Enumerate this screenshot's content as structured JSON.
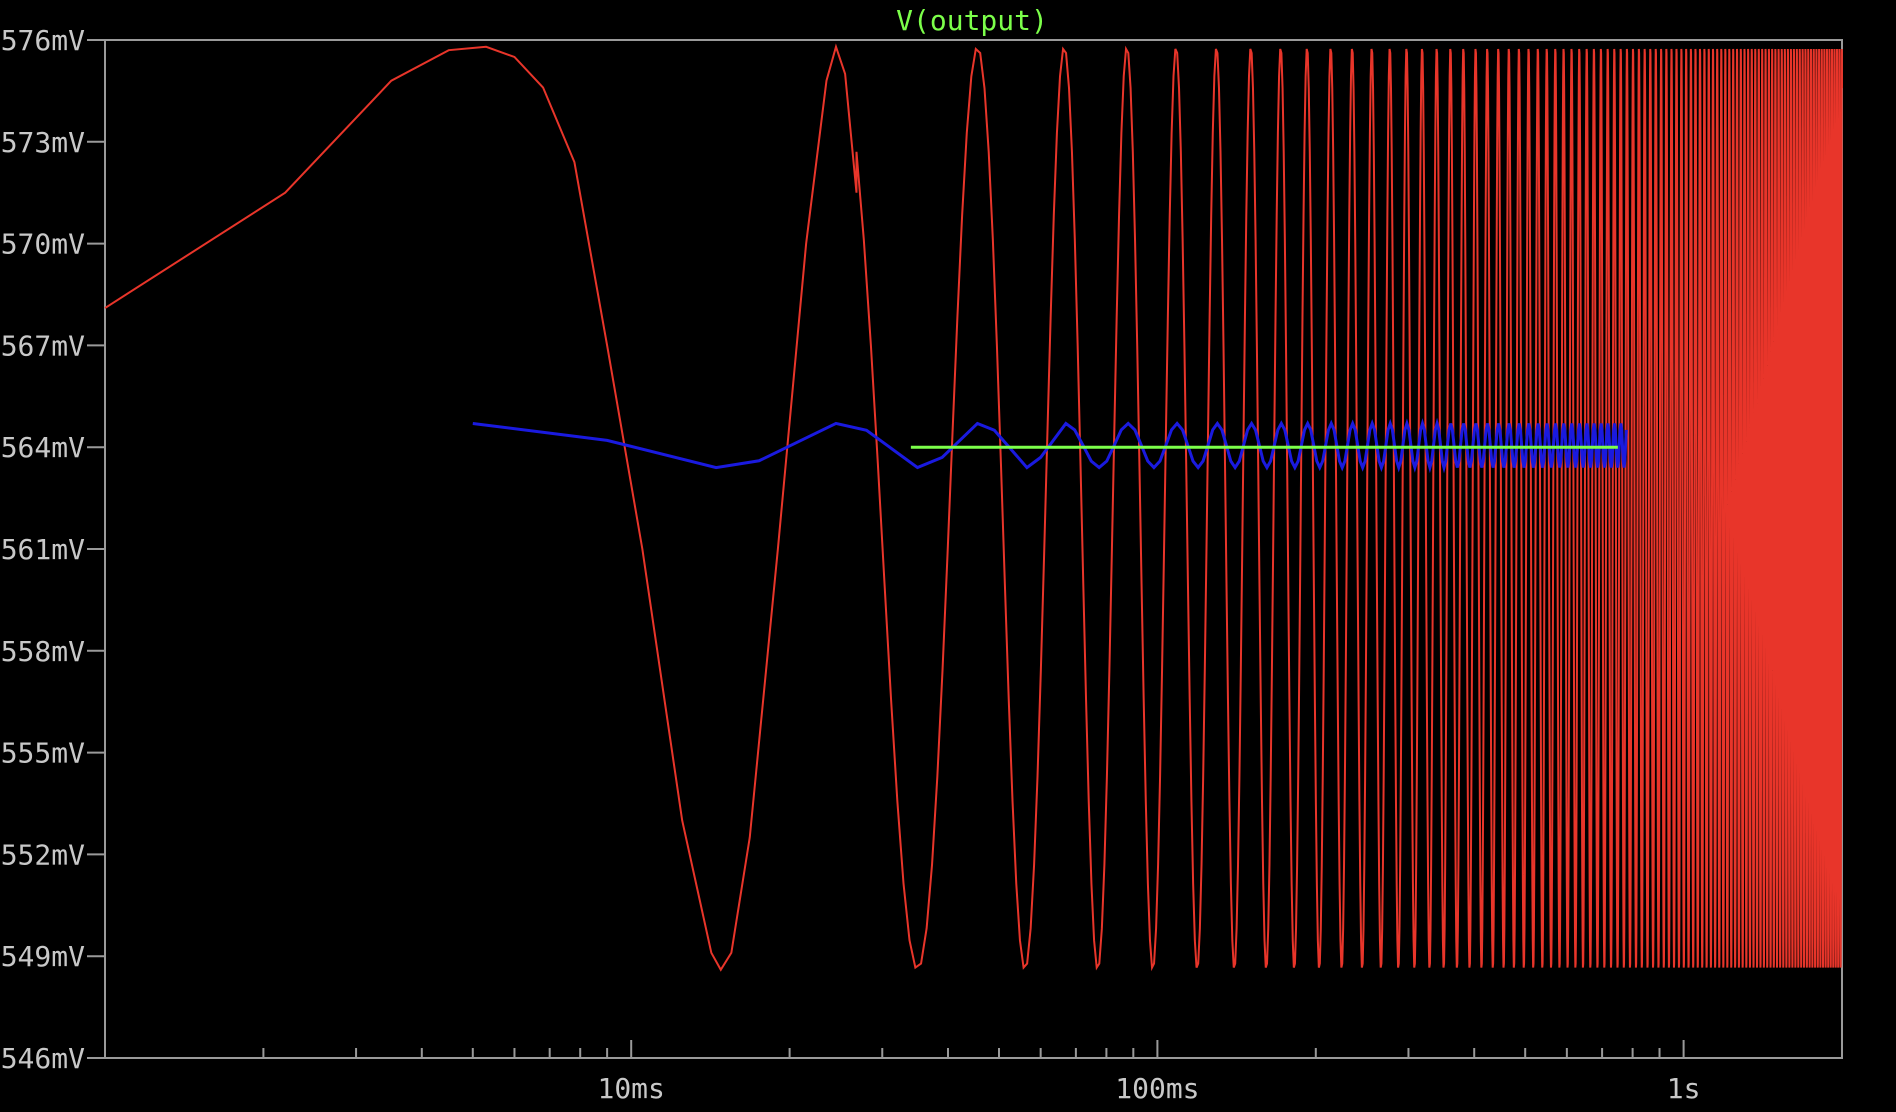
{
  "chart_data": {
    "type": "line",
    "title": "V(output)",
    "title_color": "#7cff4a",
    "background": "#000000",
    "frame_color": "#9a9a9a",
    "label_color": "#c8c8c8",
    "x_scale": "log",
    "xlim": [
      0.001,
      2.0
    ],
    "ylim": [
      546,
      576
    ],
    "x_unit": "s",
    "y_unit": "mV",
    "grid": false,
    "x_major_ticks": [
      {
        "value": 0.01,
        "label": "10ms"
      },
      {
        "value": 0.1,
        "label": "100ms"
      },
      {
        "value": 1,
        "label": "1s"
      }
    ],
    "x_minor_ticks": [
      0.002,
      0.003,
      0.004,
      0.005,
      0.006,
      0.007,
      0.008,
      0.009,
      0.02,
      0.03,
      0.04,
      0.05,
      0.06,
      0.07,
      0.08,
      0.09,
      0.2,
      0.3,
      0.4,
      0.5,
      0.6,
      0.7,
      0.8,
      0.9,
      2.0
    ],
    "y_ticks": [
      {
        "value": 576,
        "label": "576mV"
      },
      {
        "value": 573,
        "label": "573mV"
      },
      {
        "value": 570,
        "label": "570mV"
      },
      {
        "value": 567,
        "label": "567mV"
      },
      {
        "value": 564,
        "label": "564mV"
      },
      {
        "value": 561,
        "label": "561mV"
      },
      {
        "value": 558,
        "label": "558mV"
      },
      {
        "value": 555,
        "label": "555mV"
      },
      {
        "value": 552,
        "label": "552mV"
      },
      {
        "value": 549,
        "label": "549mV"
      },
      {
        "value": 546,
        "label": "546mV"
      }
    ],
    "series": [
      {
        "color": "#e8352a",
        "description": "chirp sine between ~548.6mV and ~575.8mV",
        "center_mV": 562.2,
        "amplitude_mV": 13.6,
        "x_start": 0.001,
        "x_end": 2.0,
        "start_value_mV": 568.1,
        "peaks_s": [
          0.0053,
          0.0245,
          0.0455,
          0.067,
          0.088,
          0.109,
          0.13
        ],
        "troughs_s": [
          0.0148,
          0.035,
          0.0565,
          0.0775,
          0.0985,
          0.1195
        ],
        "period_s": 0.021
      },
      {
        "color": "#1a1adf",
        "description": "small oscillation around 564mV",
        "x_start": 0.005,
        "x_end": 0.78,
        "points": [
          [
            0.005,
            564.7
          ],
          [
            0.009,
            564.2
          ],
          [
            0.0145,
            563.4
          ],
          [
            0.0175,
            563.6
          ],
          [
            0.0245,
            564.7
          ],
          [
            0.028,
            564.5
          ],
          [
            0.035,
            563.4
          ],
          [
            0.039,
            563.7
          ],
          [
            0.0455,
            564.7
          ],
          [
            0.049,
            564.5
          ],
          [
            0.0565,
            563.4
          ],
          [
            0.06,
            563.7
          ],
          [
            0.067,
            564.7
          ]
        ],
        "amplitude_mV": 0.65,
        "center_mV": 564.05,
        "period_s": 0.021
      },
      {
        "color": "#7cff4a",
        "description": "flat line",
        "x_start": 0.034,
        "x_end": 0.75,
        "value_mV": 564.0
      }
    ]
  }
}
